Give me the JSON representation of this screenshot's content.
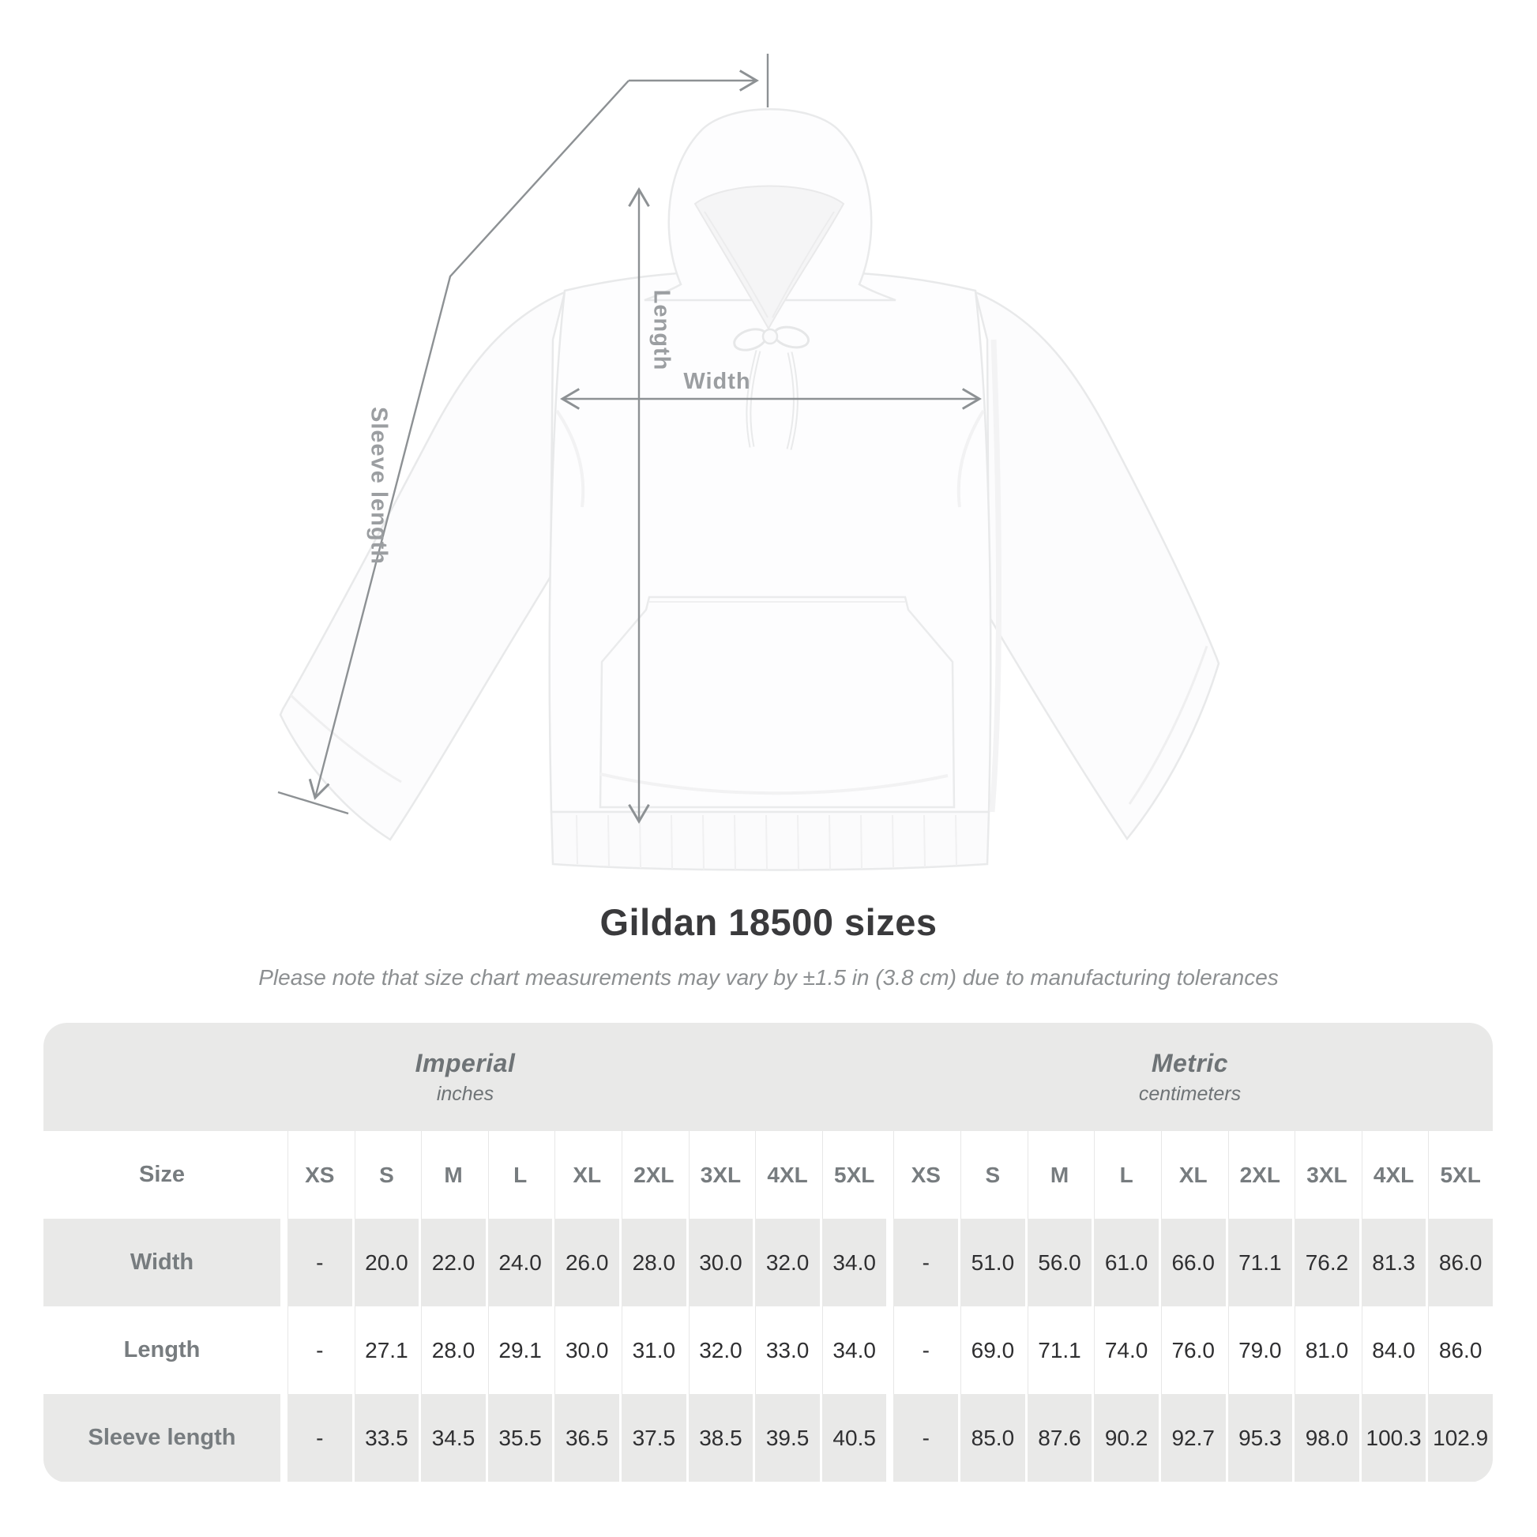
{
  "page": {
    "title": "Gildan 18500 sizes",
    "subtitle": "Please note that size chart measurements may vary by ±1.5 in (3.8 cm) due to manufacturing tolerances"
  },
  "diagram": {
    "labels": {
      "length": "Length",
      "width": "Width",
      "sleeve": "Sleeve length"
    }
  },
  "table": {
    "units": [
      {
        "name": "Imperial",
        "sub": "inches"
      },
      {
        "name": "Metric",
        "sub": "centimeters"
      }
    ],
    "size_column_header": "Size",
    "sizes": [
      "XS",
      "S",
      "M",
      "L",
      "XL",
      "2XL",
      "3XL",
      "4XL",
      "5XL"
    ],
    "rows": [
      {
        "label": "Width",
        "imperial": [
          "-",
          "20.0",
          "22.0",
          "24.0",
          "26.0",
          "28.0",
          "30.0",
          "32.0",
          "34.0"
        ],
        "metric": [
          "-",
          "51.0",
          "56.0",
          "61.0",
          "66.0",
          "71.1",
          "76.2",
          "81.3",
          "86.0"
        ]
      },
      {
        "label": "Length",
        "imperial": [
          "-",
          "27.1",
          "28.0",
          "29.1",
          "30.0",
          "31.0",
          "32.0",
          "33.0",
          "34.0"
        ],
        "metric": [
          "-",
          "69.0",
          "71.1",
          "74.0",
          "76.0",
          "79.0",
          "81.0",
          "84.0",
          "86.0"
        ]
      },
      {
        "label": "Sleeve length",
        "imperial": [
          "-",
          "33.5",
          "34.5",
          "35.5",
          "36.5",
          "37.5",
          "38.5",
          "39.5",
          "40.5"
        ],
        "metric": [
          "-",
          "85.0",
          "87.6",
          "90.2",
          "92.7",
          "95.3",
          "98.0",
          "100.3",
          "102.9"
        ]
      }
    ]
  },
  "colors": {
    "band_gray": "#e9e9e8",
    "line_gray": "#8d9194",
    "diagram_label_gray": "#9b9ea1",
    "label_text": "#777c7f",
    "value_text": "#2f2f31",
    "title_text": "#3a3a3c",
    "subtitle_text": "#8c8f91"
  }
}
